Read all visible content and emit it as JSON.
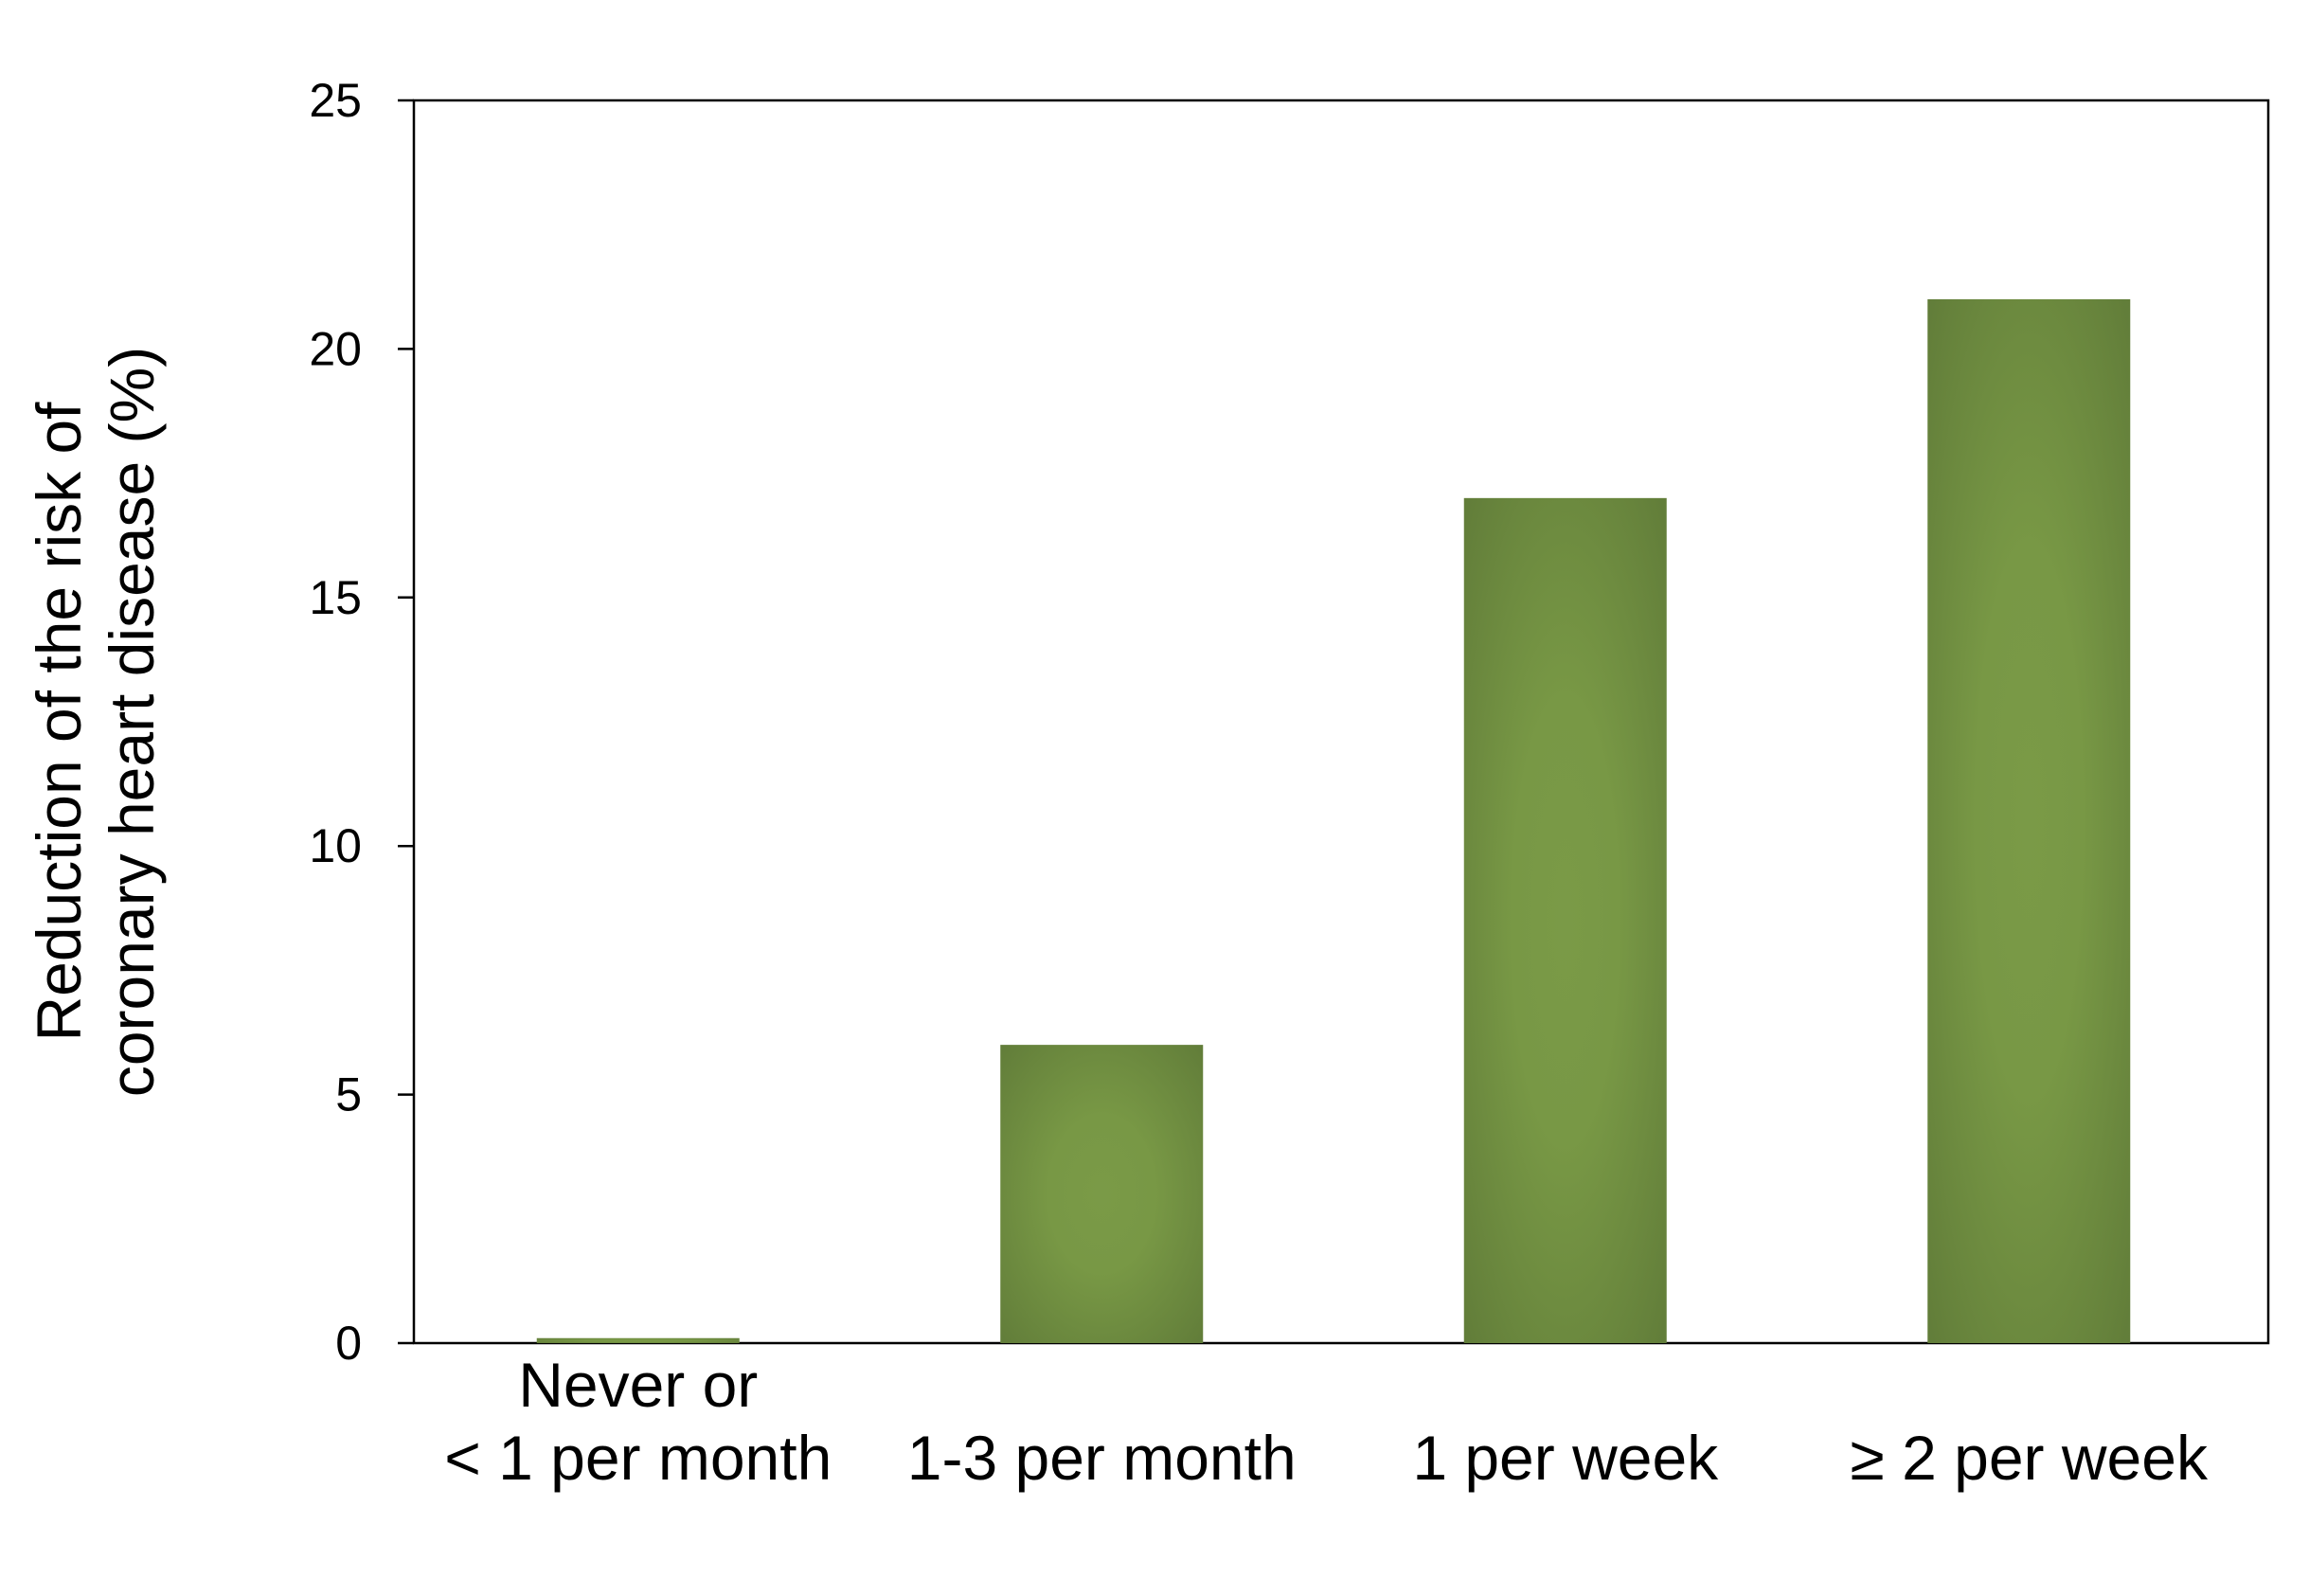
{
  "chart_data": {
    "type": "bar",
    "title": "",
    "xlabel": "",
    "ylabel_lines": [
      "Reduction of the risk of",
      "coronary heart disease (%)"
    ],
    "categories": [
      [
        "Never or",
        "< 1 per month"
      ],
      [
        "1-3 per month"
      ],
      [
        "1 per week"
      ],
      [
        "≥ 2 per week"
      ]
    ],
    "values": [
      0.1,
      6,
      17,
      21
    ],
    "ylim": [
      0,
      25
    ],
    "yticks": [
      0,
      5,
      10,
      15,
      20,
      25
    ],
    "grid": false,
    "legend": "none",
    "colors": {
      "bar_light": "#7a9a47",
      "bar_dark": "#5f7a38",
      "axis": "#000000"
    }
  }
}
